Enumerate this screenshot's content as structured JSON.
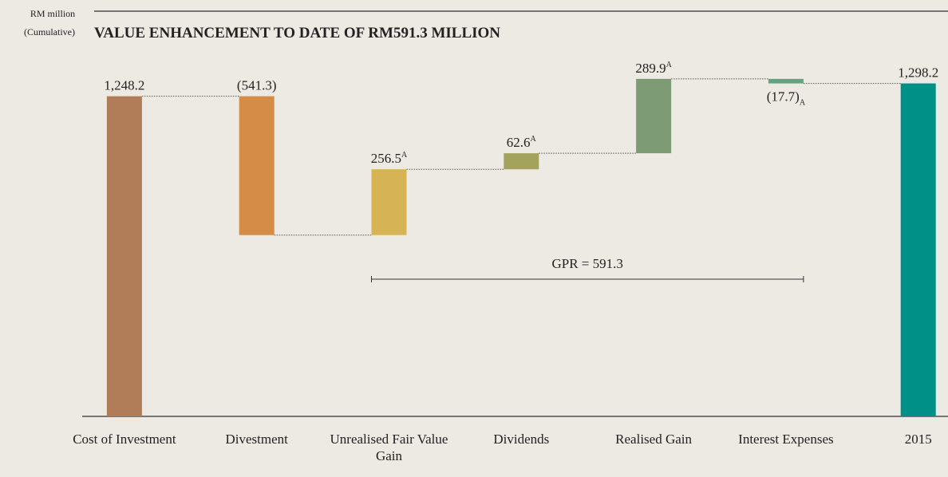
{
  "chart_data": {
    "type": "waterfall",
    "title": "VALUE ENHANCEMENT TO DATE OF RM591.3 MILLION",
    "y_label": [
      "RM million",
      "(Cumulative)"
    ],
    "categories": [
      "Cost of Investment",
      "Divestment",
      "Unrealised Fair Value Gain",
      "Dividends",
      "Realised Gain",
      "Interest Expenses",
      "2015"
    ],
    "values": [
      1248.2,
      -541.3,
      256.5,
      62.6,
      289.9,
      -17.7,
      1298.2
    ],
    "value_labels": [
      "1,248.2",
      "(541.3)",
      "256.5",
      "62.6",
      "289.9",
      "(17.7)",
      "1,298.2"
    ],
    "value_notes": [
      null,
      null,
      "A",
      "A",
      "A",
      "A",
      null
    ],
    "colors": [
      "#b07d58",
      "#d48c47",
      "#d6b455",
      "#a3a35e",
      "#7d9c76",
      "#5fa57f",
      "#009088"
    ],
    "annotation": "GPR = 591.3",
    "ylim": [
      0,
      1300
    ]
  }
}
